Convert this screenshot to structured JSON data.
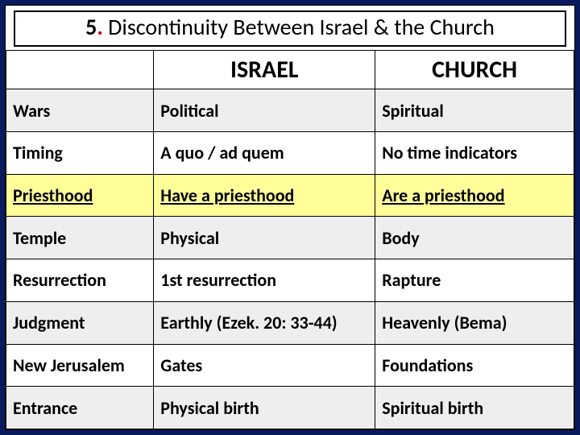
{
  "title_num": "5",
  "title_dot": ".",
  "title_text": " Discontinuity Between Israel & the Church",
  "headers": {
    "israel": "ISRAEL",
    "church": "CHURCH"
  },
  "rows": [
    {
      "label": "Wars",
      "israel": "Political",
      "church": "Spiritual",
      "style": "shade"
    },
    {
      "label": "Timing",
      "israel": "A quo / ad quem",
      "church": "No time indicators",
      "style": "plain"
    },
    {
      "label": "Priesthood",
      "israel": "Have a priesthood",
      "church": "Are a priesthood",
      "style": "hl"
    },
    {
      "label": "Temple",
      "israel": "Physical",
      "church": "Body",
      "style": "shade"
    },
    {
      "label": "Resurrection",
      "israel": "1st resurrection",
      "church": "Rapture",
      "style": "plain"
    },
    {
      "label": "Judgment",
      "israel": "Earthly (Ezek. 20: 33-44)",
      "church": "Heavenly (Bema)",
      "style": "shade"
    },
    {
      "label": "New Jerusalem",
      "israel": "Gates",
      "church": "Foundations",
      "style": "plain"
    },
    {
      "label": "Entrance",
      "israel": "Physical birth",
      "church": "Spiritual birth",
      "style": "shade"
    }
  ],
  "colors": {
    "page_bg": "#0a1a5e",
    "slide_bg": "#ffffff",
    "border": "#000000",
    "shade_bg": "#eeeeee",
    "highlight_bg": "#ffff9a",
    "dot_color": "#c00000"
  }
}
